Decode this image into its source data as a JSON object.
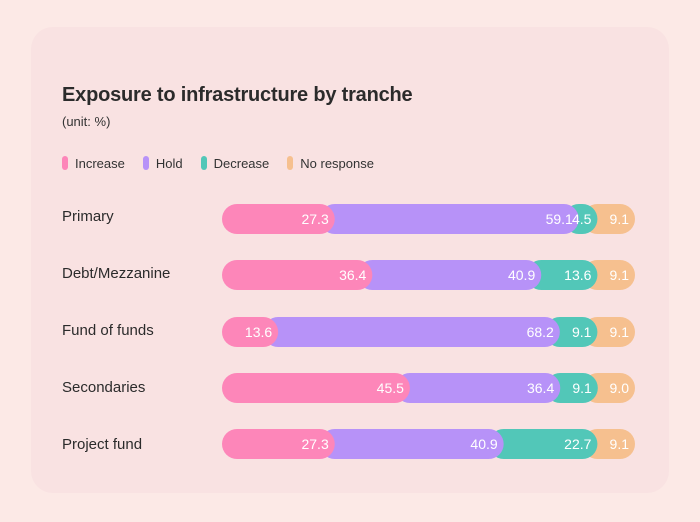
{
  "chart_data": {
    "type": "bar",
    "orientation": "horizontal",
    "stacked": true,
    "title": "Exposure to infrastructure by tranche",
    "subtitle": "(unit: %)",
    "categories": [
      "Primary",
      "Debt/Mezzanine",
      "Fund of funds",
      "Secondaries",
      "Project fund"
    ],
    "series": [
      {
        "name": "Increase",
        "color": "#fd86b9",
        "values": [
          27.3,
          36.4,
          13.6,
          45.5,
          27.3
        ]
      },
      {
        "name": "Hold",
        "color": "#b792f8",
        "values": [
          59.1,
          40.9,
          68.2,
          36.4,
          40.9
        ]
      },
      {
        "name": "Decrease",
        "color": "#52c7b8",
        "values": [
          4.5,
          13.6,
          9.1,
          9.1,
          22.7
        ]
      },
      {
        "name": "No response",
        "color": "#f6c08f",
        "values": [
          9.1,
          9.1,
          9.1,
          9.0,
          9.1
        ]
      }
    ],
    "legend_position": "top-left",
    "value_labels": true,
    "grid": false
  }
}
